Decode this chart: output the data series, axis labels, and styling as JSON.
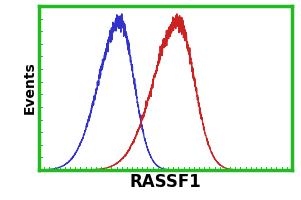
{
  "blue_peak": 0.32,
  "red_peak": 0.55,
  "blue_color": "#3333cc",
  "red_color": "#cc2222",
  "bg_color": "#ffffff",
  "border_color": "#22bb22",
  "ylabel": "Events",
  "xlabel": "RASSF1",
  "xlabel_fontsize": 12,
  "ylabel_fontsize": 10,
  "blue_sigma": 0.065,
  "red_sigma": 0.075,
  "xmin": 0.0,
  "xmax": 1.0,
  "ymin": 0.0,
  "ymax": 1.05,
  "noise_seed_blue": 42,
  "noise_seed_red": 99,
  "noise_amplitude": 0.025,
  "border_linewidth": 2.5,
  "tick_color": "#22bb22",
  "num_xticks": 50,
  "num_yticks": 14,
  "figsize": [
    3.01,
    2.0
  ],
  "dpi": 100
}
